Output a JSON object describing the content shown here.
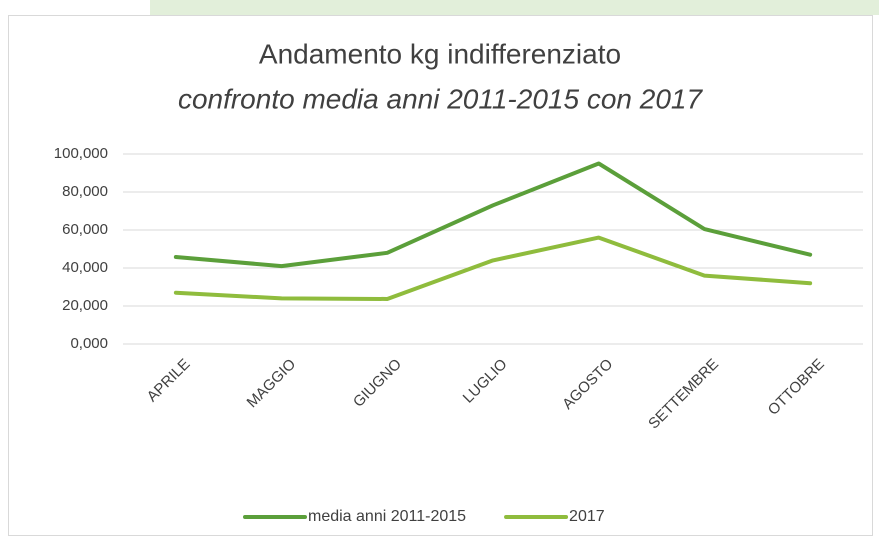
{
  "chart_data": {
    "type": "line",
    "title": "Andamento kg indifferenziato",
    "subtitle": "confronto media anni 2011-2015 con 2017",
    "categories": [
      "APRILE",
      "MAGGIO",
      "GIUGNO",
      "LUGLIO",
      "AGOSTO",
      "SETTEMBRE",
      "OTTOBRE"
    ],
    "series": [
      {
        "name": "media anni 2011-2015",
        "color": "#5b9f3a",
        "values": [
          45.8,
          41,
          48,
          73,
          95,
          60.5,
          47
        ]
      },
      {
        "name": "2017",
        "color": "#8fbc3d",
        "values": [
          27,
          24,
          23.7,
          44,
          56,
          36,
          32
        ]
      }
    ],
    "ylim": [
      0,
      100
    ],
    "yticks": [
      {
        "value": 0,
        "label": "0,000"
      },
      {
        "value": 20,
        "label": "20,000"
      },
      {
        "value": 40,
        "label": "40,000"
      },
      {
        "value": 60,
        "label": "60,000"
      },
      {
        "value": 80,
        "label": "80,000"
      },
      {
        "value": 100,
        "label": "100,000"
      }
    ],
    "grid": true,
    "legend": "bottom"
  }
}
